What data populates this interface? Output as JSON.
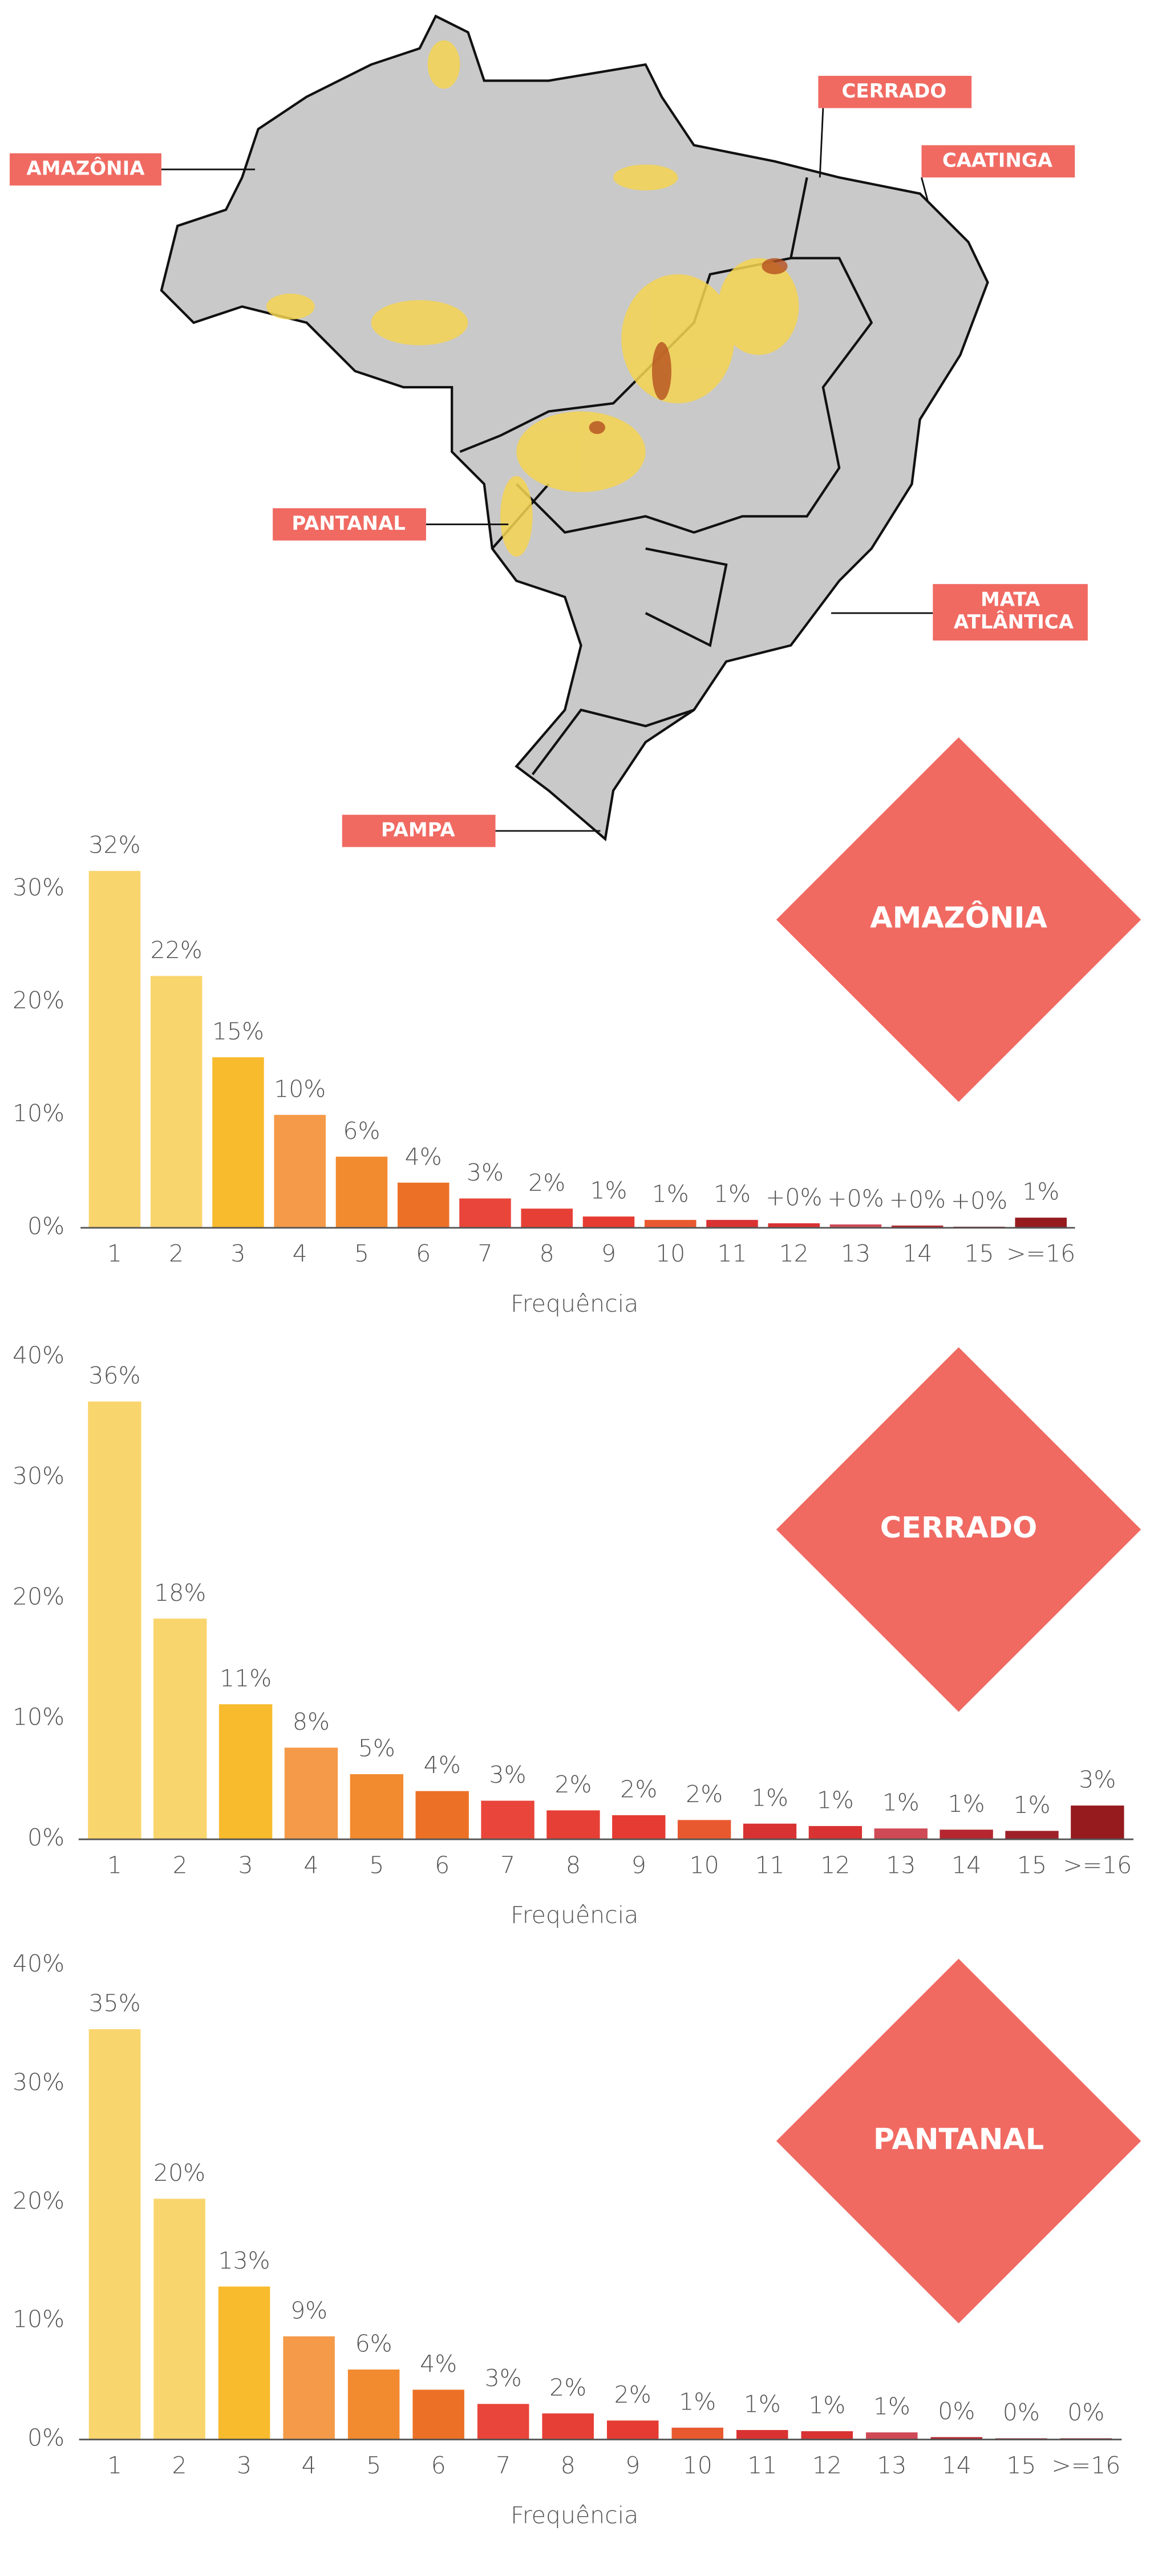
{
  "map": {
    "labels": [
      "AMAZÔNIA",
      "CERRADO",
      "CAATINGA",
      "PANTANAL",
      "MATA ATLÂNTICA",
      "PAMPA"
    ]
  },
  "chart_data": [
    {
      "type": "bar",
      "title": "AMAZÔNIA",
      "x_label": "Frequência",
      "categories": [
        "1",
        "2",
        "3",
        "4",
        "5",
        "6",
        "7",
        "8",
        "9",
        "10",
        "11",
        "12",
        "13",
        "14",
        "15",
        ">=16"
      ],
      "values": [
        31.6,
        22.3,
        15.1,
        10,
        6.3,
        4,
        2.6,
        1.7,
        1,
        0.7,
        0.7,
        0.4,
        0.3,
        0.2,
        0.1,
        0.9
      ],
      "value_labels": [
        "32%",
        "22%",
        "15%",
        "10%",
        "6%",
        "4%",
        "3%",
        "2%",
        "1%",
        "1%",
        "1%",
        "+0%",
        "+0%",
        "+0%",
        "+0%",
        "1%"
      ],
      "colors": [
        "#f9d56d",
        "#f9d56d",
        "#f8bb2d",
        "#f59a48",
        "#f28a2f",
        "#ec7127",
        "#e9453a",
        "#e63f35",
        "#e63b32",
        "#e9592f",
        "#d93232",
        "#d93232",
        "#cf4a56",
        "#b52630",
        "#a0202a",
        "#951b1f"
      ],
      "ylim": [
        0,
        33
      ],
      "yticks": [
        {
          "value": 0,
          "label": "0%"
        },
        {
          "value": 10,
          "label": "10%"
        },
        {
          "value": 20,
          "label": "20%"
        },
        {
          "value": 30,
          "label": "30%"
        }
      ]
    },
    {
      "type": "bar",
      "title": "CERRADO",
      "x_label": "Frequência",
      "categories": [
        "1",
        "2",
        "3",
        "4",
        "5",
        "6",
        "7",
        "8",
        "9",
        "10",
        "11",
        "12",
        "13",
        "14",
        "15",
        ">=16"
      ],
      "values": [
        36.3,
        18.3,
        11.2,
        7.6,
        5.4,
        4,
        3.2,
        2.4,
        2,
        1.6,
        1.3,
        1.1,
        0.9,
        0.8,
        0.7,
        2.8
      ],
      "value_labels": [
        "36%",
        "18%",
        "11%",
        "8%",
        "5%",
        "4%",
        "3%",
        "2%",
        "2%",
        "2%",
        "1%",
        "1%",
        "1%",
        "1%",
        "1%",
        "3%"
      ],
      "colors": [
        "#f9d56d",
        "#f9d56d",
        "#f8bb2d",
        "#f59a48",
        "#f28a2f",
        "#ec7127",
        "#e9453a",
        "#e63f35",
        "#e63b32",
        "#e9592f",
        "#d93232",
        "#d93232",
        "#cf4a56",
        "#b52630",
        "#a0202a",
        "#951b1f"
      ],
      "ylim": [
        0,
        40
      ],
      "yticks": [
        {
          "value": 0,
          "label": "0%"
        },
        {
          "value": 10,
          "label": "10%"
        },
        {
          "value": 20,
          "label": "20%"
        },
        {
          "value": 30,
          "label": "30%"
        },
        {
          "value": 40,
          "label": "40%"
        }
      ]
    },
    {
      "type": "bar",
      "title": "PANTANAL",
      "x_label": "Frequência",
      "categories": [
        "1",
        "2",
        "3",
        "4",
        "5",
        "6",
        "7",
        "8",
        "9",
        "10",
        "11",
        "12",
        "13",
        "14",
        "15",
        ">=16"
      ],
      "values": [
        34.6,
        20.3,
        12.9,
        8.7,
        5.9,
        4.2,
        3,
        2.2,
        1.6,
        1,
        0.8,
        0.7,
        0.6,
        0.2,
        0.1,
        0.1
      ],
      "value_labels": [
        "35%",
        "20%",
        "13%",
        "9%",
        "6%",
        "4%",
        "3%",
        "2%",
        "2%",
        "1%",
        "1%",
        "1%",
        "1%",
        "0%",
        "0%",
        "0%"
      ],
      "colors": [
        "#f9d56d",
        "#f9d56d",
        "#f8bb2d",
        "#f59a48",
        "#f28a2f",
        "#ec7127",
        "#e9453a",
        "#e63f35",
        "#e63b32",
        "#e9592f",
        "#d93232",
        "#d93232",
        "#cf4a56",
        "#b52630",
        "#a0202a",
        "#951b1f"
      ],
      "ylim": [
        0,
        40
      ],
      "yticks": [
        {
          "value": 0,
          "label": "0%"
        },
        {
          "value": 10,
          "label": "10%"
        },
        {
          "value": 20,
          "label": "20%"
        },
        {
          "value": 30,
          "label": "30%"
        },
        {
          "value": 40,
          "label": "40%"
        }
      ]
    }
  ]
}
